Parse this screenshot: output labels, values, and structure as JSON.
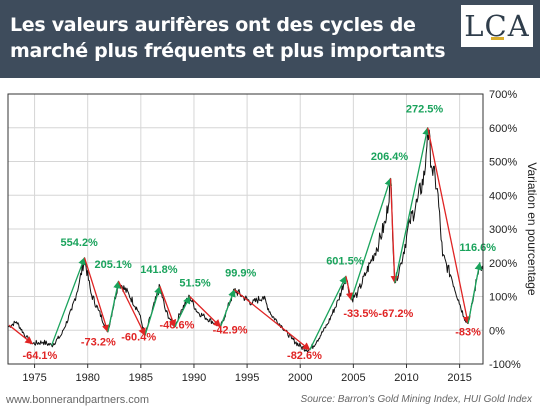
{
  "header": {
    "title_line1": "Les valeurs aurifères ont des cycles de",
    "title_line2": "marché plus fréquents et plus importants",
    "logo_text": "LCA"
  },
  "footer": {
    "left": "www.bonnerandpartners.com",
    "right": "Source: Barron's Gold Mining Index, HUI Gold Index"
  },
  "colors": {
    "header_bg": "#3e4c5c",
    "gain": "#1aa35c",
    "loss": "#e02424",
    "series": "#111111",
    "logo_accent": "#d9ad2b"
  },
  "chart_data": {
    "type": "line",
    "ylabel": "Variation en pourcentage",
    "xlim": [
      1972.5,
      2017.2
    ],
    "ylim": [
      -100,
      700
    ],
    "x_ticks": [
      1975,
      1980,
      1985,
      1990,
      1995,
      2000,
      2005,
      2010,
      2015
    ],
    "y_ticks": [
      "-100%",
      "0%",
      "100%",
      "200%",
      "300%",
      "400%",
      "500%",
      "600%",
      "700%"
    ],
    "y_tick_values": [
      -100,
      0,
      100,
      200,
      300,
      400,
      500,
      600,
      700
    ],
    "grid": true,
    "series_anchors": [
      [
        1972.5,
        10
      ],
      [
        1973.3,
        25
      ],
      [
        1974.2,
        -20
      ],
      [
        1974.8,
        -40
      ],
      [
        1975.8,
        -35
      ],
      [
        1976.6,
        -45
      ],
      [
        1977.5,
        -15
      ],
      [
        1978.5,
        60
      ],
      [
        1979.2,
        140
      ],
      [
        1979.7,
        215
      ],
      [
        1980.3,
        110
      ],
      [
        1981.0,
        60
      ],
      [
        1981.9,
        -5
      ],
      [
        1982.9,
        145
      ],
      [
        1983.9,
        105
      ],
      [
        1984.8,
        55
      ],
      [
        1985.4,
        -15
      ],
      [
        1985.9,
        40
      ],
      [
        1986.8,
        130
      ],
      [
        1987.3,
        60
      ],
      [
        1987.8,
        30
      ],
      [
        1988.2,
        10
      ],
      [
        1988.8,
        60
      ],
      [
        1989.6,
        100
      ],
      [
        1990.3,
        55
      ],
      [
        1991.0,
        40
      ],
      [
        1992.5,
        10
      ],
      [
        1993.1,
        60
      ],
      [
        1993.8,
        120
      ],
      [
        1994.6,
        100
      ],
      [
        1995.5,
        80
      ],
      [
        1996.5,
        100
      ],
      [
        1997.3,
        45
      ],
      [
        1998.3,
        10
      ],
      [
        1999.2,
        -25
      ],
      [
        2000.1,
        -50
      ],
      [
        2000.9,
        -58
      ],
      [
        2001.6,
        -30
      ],
      [
        2002.6,
        20
      ],
      [
        2003.6,
        90
      ],
      [
        2004.3,
        160
      ],
      [
        2004.8,
        90
      ],
      [
        2005.4,
        110
      ],
      [
        2006.2,
        170
      ],
      [
        2006.6,
        200
      ],
      [
        2007.4,
        260
      ],
      [
        2008.1,
        330
      ],
      [
        2008.5,
        450
      ],
      [
        2008.9,
        140
      ],
      [
        2009.5,
        200
      ],
      [
        2010.3,
        320
      ],
      [
        2011.0,
        380
      ],
      [
        2011.7,
        460
      ],
      [
        2012.0,
        600
      ],
      [
        2012.4,
        480
      ],
      [
        2012.9,
        420
      ],
      [
        2013.4,
        220
      ],
      [
        2014.2,
        160
      ],
      [
        2014.9,
        90
      ],
      [
        2015.4,
        40
      ],
      [
        2015.8,
        20
      ],
      [
        2016.2,
        80
      ],
      [
        2016.6,
        150
      ],
      [
        2016.9,
        200
      ],
      [
        2017.2,
        180
      ]
    ],
    "cycles": [
      {
        "kind": "gain",
        "from": [
          1976.6,
          -45
        ],
        "to": [
          1979.7,
          215
        ],
        "label": "554.2%",
        "label_at": [
          1979.2,
          250
        ]
      },
      {
        "kind": "loss",
        "from": [
          1972.6,
          15
        ],
        "to": [
          1974.8,
          -40
        ],
        "label": "-64.1%",
        "label_at": [
          1975.5,
          -85
        ]
      },
      {
        "kind": "loss",
        "from": [
          1979.7,
          215
        ],
        "to": [
          1981.9,
          -5
        ],
        "label": "-73.2%",
        "label_at": [
          1981.0,
          -45
        ]
      },
      {
        "kind": "gain",
        "from": [
          1981.9,
          -5
        ],
        "to": [
          1982.9,
          145
        ],
        "label": "205.1%",
        "label_at": [
          1982.4,
          185
        ]
      },
      {
        "kind": "loss",
        "from": [
          1982.9,
          145
        ],
        "to": [
          1985.4,
          -15
        ],
        "label": "-60.4%",
        "label_at": [
          1984.8,
          -30
        ]
      },
      {
        "kind": "gain",
        "from": [
          1985.4,
          -15
        ],
        "to": [
          1986.8,
          130
        ],
        "label": "141.8%",
        "label_at": [
          1986.7,
          170
        ]
      },
      {
        "kind": "loss",
        "from": [
          1986.8,
          130
        ],
        "to": [
          1988.2,
          10
        ],
        "label": "-46.6%",
        "label_at": [
          1988.4,
          5
        ]
      },
      {
        "kind": "gain",
        "from": [
          1988.2,
          10
        ],
        "to": [
          1989.6,
          100
        ],
        "label": "51.5%",
        "label_at": [
          1990.1,
          130
        ]
      },
      {
        "kind": "loss",
        "from": [
          1989.6,
          100
        ],
        "to": [
          1992.5,
          10
        ],
        "label": "-42.9%",
        "label_at": [
          1993.4,
          -10
        ]
      },
      {
        "kind": "gain",
        "from": [
          1992.5,
          10
        ],
        "to": [
          1993.8,
          120
        ],
        "label": "99.9%",
        "label_at": [
          1994.4,
          160
        ]
      },
      {
        "kind": "loss",
        "from": [
          1993.8,
          120
        ],
        "to": [
          2000.9,
          -58
        ],
        "label": "-82.6%",
        "label_at": [
          2000.4,
          -85
        ]
      },
      {
        "kind": "gain",
        "from": [
          2000.9,
          -58
        ],
        "to": [
          2004.3,
          160
        ],
        "label": "601.5%",
        "label_at": [
          2004.2,
          195
        ]
      },
      {
        "kind": "loss",
        "from": [
          2004.3,
          160
        ],
        "to": [
          2004.8,
          90
        ],
        "label": "-33.5%",
        "label_at": [
          2005.7,
          40
        ]
      },
      {
        "kind": "gain",
        "from": [
          2004.8,
          90
        ],
        "to": [
          2008.5,
          450
        ],
        "label": "206.4%",
        "label_at": [
          2008.4,
          505
        ]
      },
      {
        "kind": "loss",
        "from": [
          2008.5,
          450
        ],
        "to": [
          2008.9,
          140
        ],
        "label": "-67.2%",
        "label_at": [
          2009.0,
          40
        ]
      },
      {
        "kind": "gain",
        "from": [
          2008.9,
          140
        ],
        "to": [
          2012.0,
          600
        ],
        "label": "272.5%",
        "label_at": [
          2011.7,
          645
        ]
      },
      {
        "kind": "loss",
        "from": [
          2012.0,
          600
        ],
        "to": [
          2015.8,
          20
        ],
        "label": "-83%",
        "label_at": [
          2015.8,
          -15
        ]
      },
      {
        "kind": "gain",
        "from": [
          2015.8,
          20
        ],
        "to": [
          2016.9,
          200
        ],
        "label": "116.6%",
        "label_at": [
          2016.7,
          235
        ]
      }
    ]
  }
}
